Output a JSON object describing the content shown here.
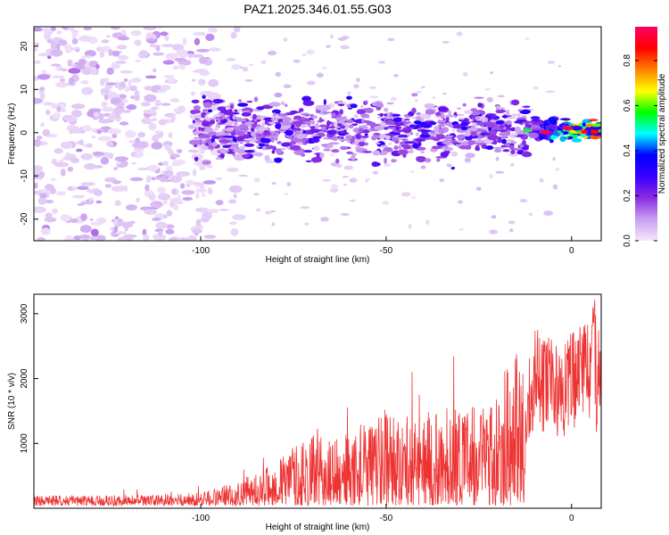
{
  "figure": {
    "title": "PAZ1.2025.346.01.55.G03"
  },
  "chart_data": [
    {
      "type": "heatmap",
      "title": "",
      "xlabel": "Height of straight line (km)",
      "ylabel": "Frequency (Hz)",
      "xlim": [
        -145,
        8
      ],
      "ylim": [
        -25,
        24.5
      ],
      "xticks": [
        -100,
        -50,
        0
      ],
      "yticks": [
        -20,
        -10,
        0,
        10,
        20
      ],
      "band_center_hz": 0.5,
      "colorbar": {
        "label": "Normalized spectral amplitude",
        "range": [
          0,
          0.95
        ],
        "ticks": [
          0.0,
          0.2,
          0.4,
          0.6,
          0.8
        ],
        "tick_labels": [
          "0.0",
          "0.2",
          "0.4",
          "0.6",
          "0.8"
        ],
        "colors": [
          "#f4e8fb",
          "#c9a0f0",
          "#8a2be2",
          "#3a00ff",
          "#0000ff",
          "#00ffff",
          "#00ff00",
          "#ffff00",
          "#ff8000",
          "#ff0000",
          "#ff0066"
        ]
      }
    },
    {
      "type": "line",
      "title": "",
      "xlabel": "Height of straight line (km)",
      "ylabel": "SNR (10 * v/v)",
      "xlim": [
        -145,
        8
      ],
      "ylim": [
        0,
        3300
      ],
      "xticks": [
        -100,
        -50,
        0
      ],
      "yticks": [
        1000,
        2000,
        3000
      ],
      "line_color": "#ee3333",
      "series": [
        {
          "name": "SNR",
          "envelope_x": [
            -145,
            -110,
            -100,
            -90,
            -80,
            -75,
            -70,
            -65,
            -60,
            -55,
            -50,
            -45,
            -40,
            -35,
            -30,
            -25,
            -20,
            -15,
            -12,
            -10,
            -5,
            -2,
            0,
            3,
            6,
            8
          ],
          "envelope_y": [
            120,
            130,
            160,
            300,
            500,
            750,
            850,
            780,
            900,
            1000,
            1300,
            1050,
            1100,
            1200,
            1300,
            1150,
            1550,
            1900,
            1800,
            2200,
            2000,
            1950,
            2100,
            2200,
            2400,
            2100
          ]
        }
      ]
    }
  ]
}
